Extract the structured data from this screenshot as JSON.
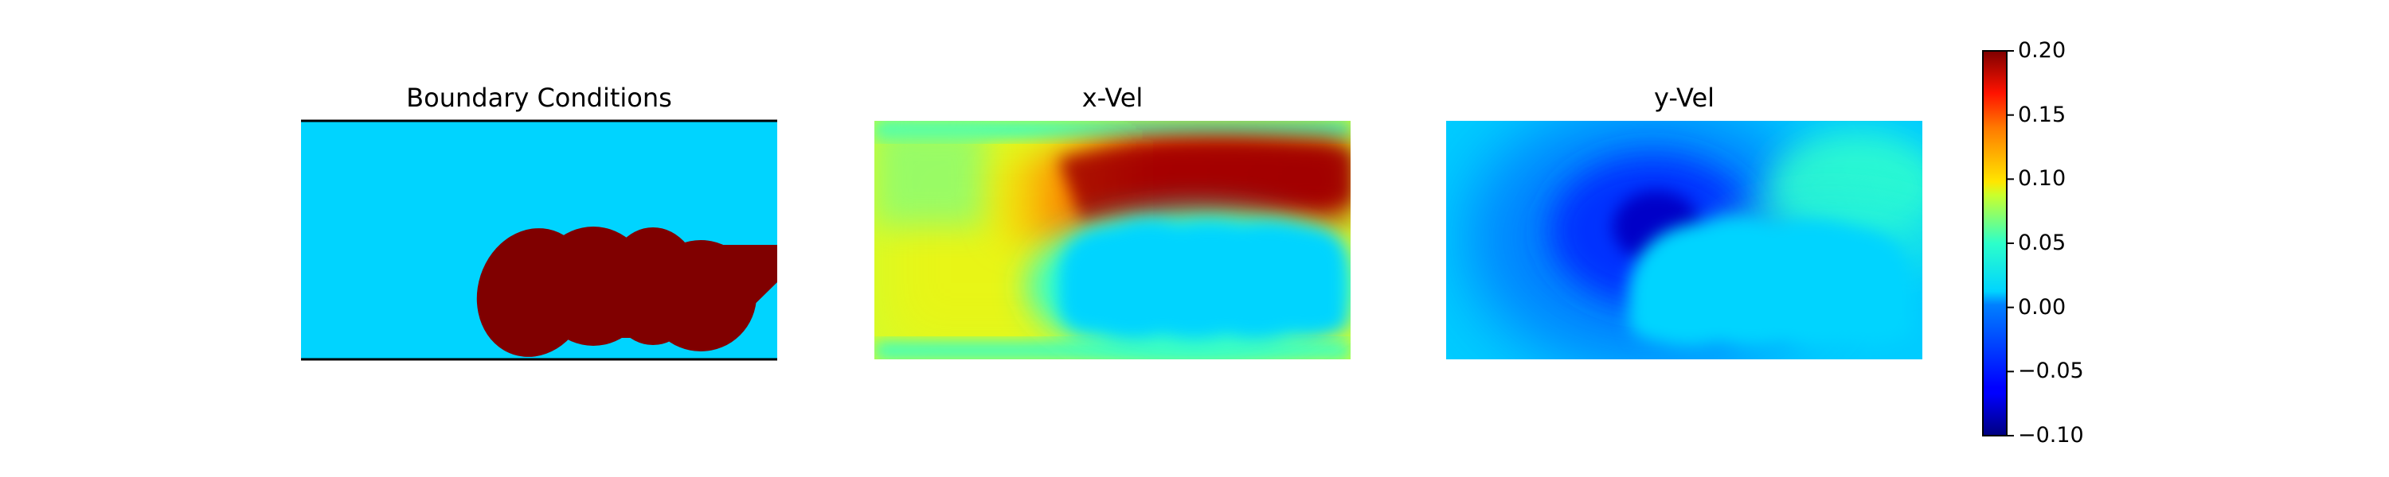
{
  "chart_data": {
    "type": "heatmap",
    "colormap": "jet",
    "panels": [
      {
        "title": "Boundary Conditions",
        "field": "boundary mask",
        "wall_lines": true
      },
      {
        "title": "x-Vel",
        "field": "horizontal velocity"
      },
      {
        "title": "y-Vel",
        "field": "vertical velocity"
      }
    ],
    "colorbar": {
      "range": [
        -0.1,
        0.2
      ],
      "ticks": [
        -0.1,
        -0.05,
        0.0,
        0.05,
        0.1,
        0.15,
        0.2
      ],
      "tick_labels": [
        "−0.10",
        "−0.05",
        "0.00",
        "0.05",
        "0.10",
        "0.15",
        "0.20"
      ]
    }
  }
}
